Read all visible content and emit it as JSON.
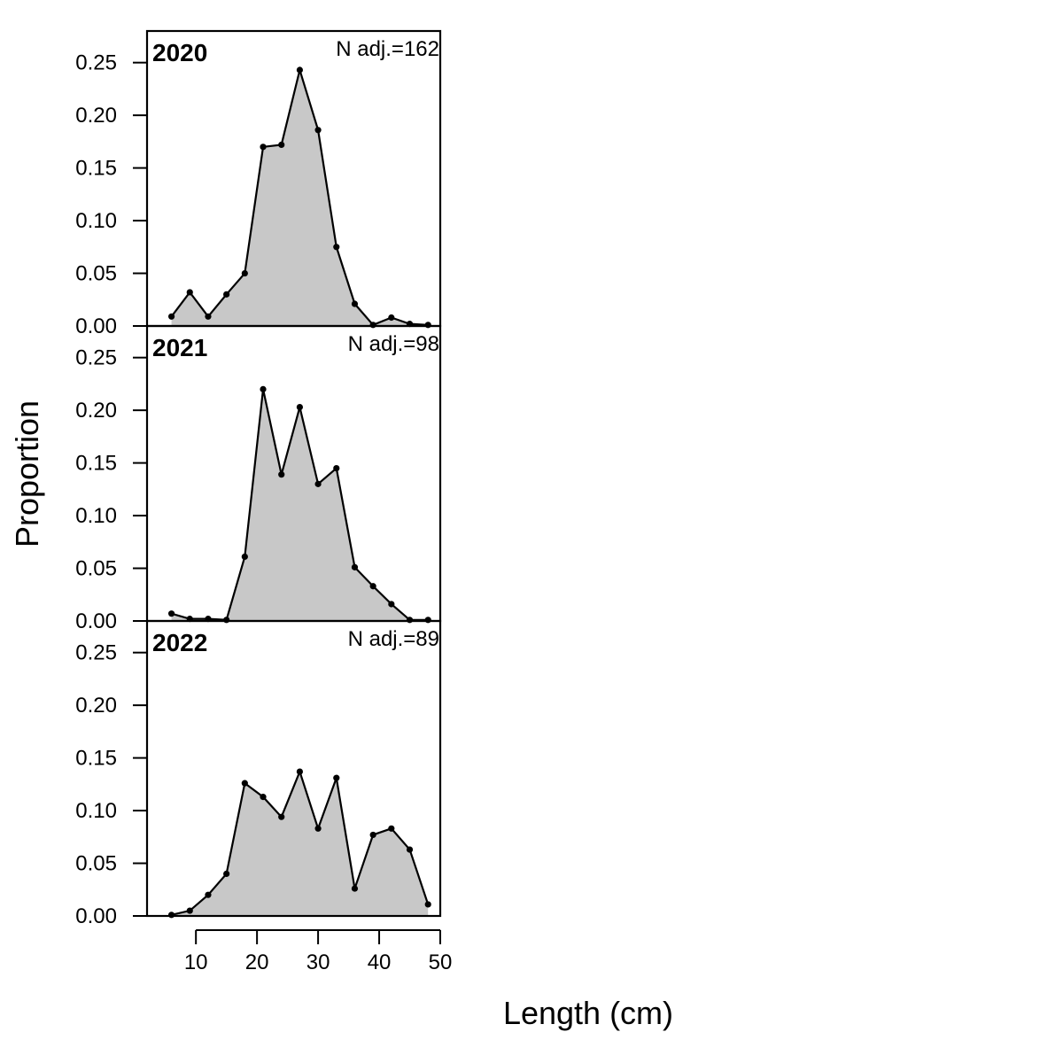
{
  "chart_data": {
    "type": "area",
    "xlabel": "Length (cm)",
    "ylabel": "Proportion",
    "xlim": [
      2,
      50
    ],
    "ylim": [
      0,
      0.28
    ],
    "xticks": [
      "10",
      "20",
      "30",
      "40",
      "50"
    ],
    "xtick_values": [
      10,
      20,
      30,
      40,
      50
    ],
    "yticks": [
      "0.00",
      "0.05",
      "0.10",
      "0.15",
      "0.20",
      "0.25"
    ],
    "ytick_values": [
      0,
      0.05,
      0.1,
      0.15,
      0.2,
      0.25
    ],
    "x": [
      6,
      9,
      12,
      15,
      18,
      21,
      24,
      27,
      30,
      33,
      36,
      39,
      42,
      45,
      48
    ],
    "fill_color": "#c8c8c8",
    "line_color": "#000000",
    "panels": [
      {
        "year": "2020",
        "n_label": "N adj.=162",
        "values": [
          0.009,
          0.032,
          0.009,
          0.03,
          0.05,
          0.17,
          0.172,
          0.243,
          0.186,
          0.075,
          0.021,
          0.001,
          0.008,
          0.002,
          0.001
        ]
      },
      {
        "year": "2021",
        "n_label": "N adj.=98",
        "values": [
          0.007,
          0.002,
          0.002,
          0.001,
          0.061,
          0.22,
          0.139,
          0.203,
          0.13,
          0.145,
          0.051,
          0.033,
          0.016,
          0.001,
          0.001
        ]
      },
      {
        "year": "2022",
        "n_label": "N adj.=89",
        "values": [
          0.001,
          0.005,
          0.02,
          0.04,
          0.126,
          0.113,
          0.094,
          0.137,
          0.083,
          0.131,
          0.026,
          0.077,
          0.083,
          0.063,
          0.011
        ]
      }
    ]
  }
}
